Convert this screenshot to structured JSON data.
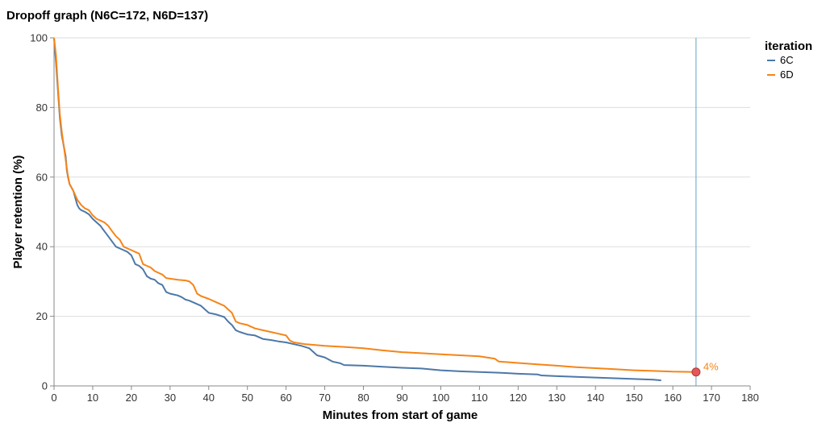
{
  "chart_data": {
    "type": "line",
    "title": "Dropoff graph (N6C=172, N6D=137)",
    "xlabel": "Minutes from start of game",
    "ylabel": "Player retention (%)",
    "xlim": [
      0,
      180
    ],
    "ylim": [
      0,
      100
    ],
    "xticks": [
      0,
      10,
      20,
      30,
      40,
      50,
      60,
      70,
      80,
      90,
      100,
      110,
      120,
      130,
      140,
      150,
      160,
      170,
      180
    ],
    "yticks": [
      0,
      20,
      40,
      60,
      80,
      100
    ],
    "grid": true,
    "legend": {
      "title": "iteration",
      "position": "right"
    },
    "series": [
      {
        "name": "6C",
        "color": "#4c78a8",
        "x": [
          0,
          0.5,
          1,
          1.5,
          2,
          2.5,
          3,
          3.3,
          3.6,
          4,
          5,
          5.5,
          6,
          6.5,
          7,
          8,
          9,
          10,
          11,
          12,
          13,
          14,
          15,
          16,
          17,
          18,
          19,
          20,
          21,
          22,
          23,
          24,
          25,
          26,
          27,
          28,
          29,
          30,
          32,
          33,
          34,
          35,
          36,
          38,
          40,
          42,
          44,
          45,
          46,
          47,
          48,
          50,
          52,
          54,
          56,
          58,
          60,
          62,
          64,
          66,
          68,
          70,
          72,
          74,
          75,
          80,
          85,
          90,
          95,
          100,
          105,
          110,
          115,
          120,
          125,
          126,
          130,
          135,
          140,
          145,
          150,
          155,
          157
        ],
        "y": [
          100,
          93,
          85,
          77,
          72,
          69,
          66,
          62,
          60,
          58,
          56,
          54,
          52,
          51,
          50.5,
          50,
          49.3,
          48,
          47,
          46,
          44.5,
          43,
          41.5,
          40,
          39.5,
          39,
          38.5,
          37.5,
          35,
          34.5,
          33.5,
          31.5,
          30.8,
          30.5,
          29.5,
          29,
          27,
          26.5,
          26,
          25.5,
          24.8,
          24.5,
          24,
          23,
          21,
          20.5,
          19.8,
          18.5,
          17.5,
          16,
          15.5,
          14.8,
          14.5,
          13.5,
          13.2,
          12.8,
          12.5,
          12,
          11.5,
          10.8,
          8.8,
          8.2,
          7,
          6.5,
          6,
          5.8,
          5.5,
          5.2,
          5,
          4.5,
          4.2,
          4,
          3.8,
          3.5,
          3.3,
          3,
          2.8,
          2.6,
          2.4,
          2.2,
          2,
          1.8,
          1.6
        ]
      },
      {
        "name": "6D",
        "color": "#f58518",
        "x": [
          0,
          0.5,
          1,
          1.5,
          2,
          2.5,
          3,
          3.5,
          4,
          5,
          6,
          7,
          8,
          9,
          10,
          11,
          12,
          13,
          14,
          15,
          16,
          17,
          18,
          19,
          20,
          21,
          22,
          23,
          24,
          25,
          26,
          27,
          28,
          29,
          30,
          32,
          34,
          35,
          36,
          37,
          38,
          40,
          42,
          44,
          45,
          46,
          47,
          48,
          50,
          52,
          54,
          56,
          58,
          60,
          61,
          62,
          65,
          70,
          75,
          80,
          85,
          90,
          95,
          100,
          105,
          110,
          114,
          115,
          120,
          125,
          130,
          135,
          140,
          145,
          150,
          155,
          160,
          166
        ],
        "y": [
          100,
          95,
          86,
          78,
          73,
          69,
          65,
          61,
          58,
          56,
          53.5,
          52,
          51,
          50.5,
          49,
          48,
          47.5,
          47,
          46,
          44.5,
          43,
          42,
          40,
          39.5,
          39,
          38.5,
          38,
          35,
          34.5,
          34,
          33,
          32.5,
          32,
          31,
          30.8,
          30.5,
          30.3,
          30,
          29,
          26.5,
          25.8,
          25,
          24,
          23,
          22,
          21,
          18.5,
          18,
          17.5,
          16.5,
          16,
          15.5,
          15,
          14.5,
          13,
          12.5,
          12,
          11.5,
          11.2,
          10.8,
          10.2,
          9.7,
          9.4,
          9.1,
          8.8,
          8.5,
          7.8,
          7,
          6.6,
          6.2,
          5.8,
          5.4,
          5.1,
          4.8,
          4.5,
          4.3,
          4.1,
          4
        ]
      }
    ],
    "rule": {
      "x": 166,
      "color": "#5ba3c0"
    },
    "highlight_point": {
      "x": 166,
      "y": 4,
      "color": "#e45756"
    },
    "annotation": {
      "text": "4%",
      "color": "#f58518"
    }
  }
}
